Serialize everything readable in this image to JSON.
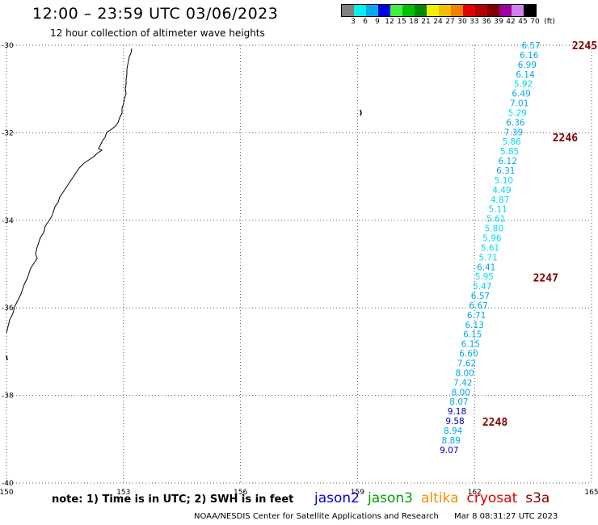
{
  "title": "12:00 – 23:59 UTC 03/06/2023",
  "subtitle": "12 hour collection of altimeter wave heights",
  "legend": {
    "unit": "(ft)",
    "bins": [
      {
        "label": "3",
        "color": "#808080"
      },
      {
        "label": "6",
        "color": "#00f0f0"
      },
      {
        "label": "9",
        "color": "#00a8f0"
      },
      {
        "label": "12",
        "color": "#0000e0"
      },
      {
        "label": "15",
        "color": "#40f040"
      },
      {
        "label": "18",
        "color": "#00c000"
      },
      {
        "label": "21",
        "color": "#008800"
      },
      {
        "label": "24",
        "color": "#f0f000"
      },
      {
        "label": "27",
        "color": "#f0c000"
      },
      {
        "label": "30",
        "color": "#f08000"
      },
      {
        "label": "33",
        "color": "#e00000"
      },
      {
        "label": "36",
        "color": "#b00000"
      },
      {
        "label": "39",
        "color": "#800000"
      },
      {
        "label": "42",
        "color": "#a000a0"
      },
      {
        "label": "45",
        "color": "#d080f0"
      },
      {
        "label": "70",
        "color": "#000000"
      }
    ]
  },
  "axes": {
    "lon_min": 150,
    "lon_max": 165,
    "lat_min": -40,
    "lat_max": -30,
    "lon_ticks": [
      "150",
      "153",
      "156",
      "159",
      "162",
      "165"
    ],
    "lat_ticks": [
      "-30",
      "-32",
      "-34",
      "-36",
      "-38",
      "-40"
    ]
  },
  "observations": [
    {
      "lat": -30.0,
      "lon": 163.45,
      "value": "6.57",
      "color": "#00a8f0"
    },
    {
      "lat": -30.22,
      "lon": 163.4,
      "value": "6.16",
      "color": "#00a8f0"
    },
    {
      "lat": -30.44,
      "lon": 163.35,
      "value": "6.99",
      "color": "#00a8f0"
    },
    {
      "lat": -30.66,
      "lon": 163.3,
      "value": "6.14",
      "color": "#00a8f0"
    },
    {
      "lat": -30.88,
      "lon": 163.25,
      "value": "5.92",
      "color": "#00d8f0"
    },
    {
      "lat": -31.1,
      "lon": 163.2,
      "value": "6.49",
      "color": "#00a8f0"
    },
    {
      "lat": -31.32,
      "lon": 163.15,
      "value": "7.01",
      "color": "#00a8f0"
    },
    {
      "lat": -31.54,
      "lon": 163.1,
      "value": "5.29",
      "color": "#00d8f0"
    },
    {
      "lat": -31.76,
      "lon": 163.05,
      "value": "6.36",
      "color": "#00a8f0"
    },
    {
      "lat": -31.98,
      "lon": 163.0,
      "value": "7.39",
      "color": "#00a8f0"
    },
    {
      "lat": -32.2,
      "lon": 162.95,
      "value": "5.86",
      "color": "#00d8f0"
    },
    {
      "lat": -32.42,
      "lon": 162.9,
      "value": "5.85",
      "color": "#00d8f0"
    },
    {
      "lat": -32.64,
      "lon": 162.85,
      "value": "6.12",
      "color": "#00a8f0"
    },
    {
      "lat": -32.86,
      "lon": 162.8,
      "value": "6.31",
      "color": "#00a8f0"
    },
    {
      "lat": -33.08,
      "lon": 162.75,
      "value": "5.10",
      "color": "#00d8f0"
    },
    {
      "lat": -33.3,
      "lon": 162.7,
      "value": "4.49",
      "color": "#00d8f0"
    },
    {
      "lat": -33.52,
      "lon": 162.65,
      "value": "4.87",
      "color": "#00d8f0"
    },
    {
      "lat": -33.74,
      "lon": 162.6,
      "value": "5.11",
      "color": "#00d8f0"
    },
    {
      "lat": -33.96,
      "lon": 162.55,
      "value": "5.61",
      "color": "#00d8f0"
    },
    {
      "lat": -34.18,
      "lon": 162.5,
      "value": "5.80",
      "color": "#00d8f0"
    },
    {
      "lat": -34.4,
      "lon": 162.45,
      "value": "5.96",
      "color": "#00d8f0"
    },
    {
      "lat": -34.62,
      "lon": 162.4,
      "value": "5.61",
      "color": "#00d8f0"
    },
    {
      "lat": -34.84,
      "lon": 162.35,
      "value": "5.71",
      "color": "#00d8f0"
    },
    {
      "lat": -35.06,
      "lon": 162.3,
      "value": "6.41",
      "color": "#00a8f0"
    },
    {
      "lat": -35.28,
      "lon": 162.25,
      "value": "5.95",
      "color": "#00d8f0"
    },
    {
      "lat": -35.5,
      "lon": 162.2,
      "value": "5.47",
      "color": "#00d8f0"
    },
    {
      "lat": -35.72,
      "lon": 162.15,
      "value": "6.57",
      "color": "#00a8f0"
    },
    {
      "lat": -35.94,
      "lon": 162.1,
      "value": "6.67",
      "color": "#00a8f0"
    },
    {
      "lat": -36.16,
      "lon": 162.05,
      "value": "6.71",
      "color": "#00a8f0"
    },
    {
      "lat": -36.38,
      "lon": 162.0,
      "value": "6.13",
      "color": "#00a8f0"
    },
    {
      "lat": -36.6,
      "lon": 161.95,
      "value": "6.15",
      "color": "#00a8f0"
    },
    {
      "lat": -36.82,
      "lon": 161.9,
      "value": "6.15",
      "color": "#00a8f0"
    },
    {
      "lat": -37.04,
      "lon": 161.85,
      "value": "6.60",
      "color": "#00a8f0"
    },
    {
      "lat": -37.26,
      "lon": 161.8,
      "value": "7.62",
      "color": "#00a8f0"
    },
    {
      "lat": -37.48,
      "lon": 161.75,
      "value": "8.00",
      "color": "#00a8f0"
    },
    {
      "lat": -37.7,
      "lon": 161.7,
      "value": "7.42",
      "color": "#00a8f0"
    },
    {
      "lat": -37.92,
      "lon": 161.65,
      "value": "8.00",
      "color": "#00a8f0"
    },
    {
      "lat": -38.14,
      "lon": 161.6,
      "value": "8.07",
      "color": "#00a8f0"
    },
    {
      "lat": -38.36,
      "lon": 161.55,
      "value": "9.18",
      "color": "#0000c0"
    },
    {
      "lat": -38.58,
      "lon": 161.5,
      "value": "9.58",
      "color": "#0000c0"
    },
    {
      "lat": -38.8,
      "lon": 161.45,
      "value": "8.94",
      "color": "#00a8f0"
    },
    {
      "lat": -39.02,
      "lon": 161.4,
      "value": "8.89",
      "color": "#00a8f0"
    },
    {
      "lat": -39.24,
      "lon": 161.35,
      "value": "9.07",
      "color": "#0000c0"
    }
  ],
  "pass_times": [
    {
      "lat": -30.0,
      "lon": 164.5,
      "label": "2245"
    },
    {
      "lat": -32.1,
      "lon": 164.0,
      "label": "2246"
    },
    {
      "lat": -35.3,
      "lon": 163.5,
      "label": "2247"
    },
    {
      "lat": -38.6,
      "lon": 162.2,
      "label": "2248"
    }
  ],
  "note": "note:  1) Time is in UTC;  2) SWH is in feet",
  "satellites": [
    {
      "name": "jason2",
      "color": "#0000e0"
    },
    {
      "name": "jason3",
      "color": "#00a000"
    },
    {
      "name": "altika",
      "color": "#f09000"
    },
    {
      "name": "cryosat",
      "color": "#e00000"
    },
    {
      "name": "s3a",
      "color": "#800000"
    }
  ],
  "footer": {
    "credit": "NOAA/NESDIS Center for Satellite Applications and Research",
    "timestamp": "Mar  8 08:31:27 UTC 2023"
  }
}
